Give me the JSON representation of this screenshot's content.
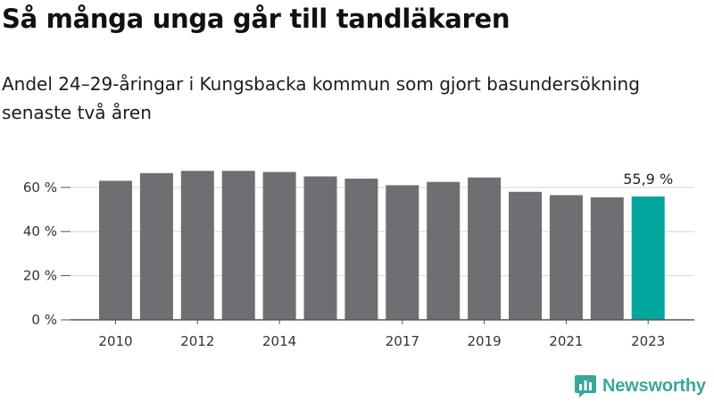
{
  "title": "Så många unga går till tandläkaren",
  "subtitle": "Andel 24–29-åringar i Kungsbacka kommun som gjort basundersökning senaste två åren",
  "brand": "Newsworthy",
  "colors": {
    "bar": "#6f6e73",
    "highlight": "#00a69b",
    "brand": "#3aa79a",
    "grid": "#d8d8d8"
  },
  "chart_data": {
    "type": "bar",
    "categories": [
      "2010",
      "2011",
      "2012",
      "2013",
      "2014",
      "2015",
      "2016",
      "2017",
      "2018",
      "2019",
      "2020",
      "2021",
      "2022",
      "2023"
    ],
    "x_tick_labels": [
      "2010",
      "",
      "2012",
      "",
      "2014",
      "",
      "",
      "2017",
      "",
      "2019",
      "",
      "2021",
      "",
      "2023"
    ],
    "values": [
      63,
      66.5,
      67.5,
      67.5,
      67,
      65,
      64,
      61,
      62.5,
      64.5,
      58,
      56.5,
      55.5,
      55.9
    ],
    "highlight_index": 13,
    "annotation": "55,9 %",
    "y_ticks": [
      0,
      20,
      40,
      60
    ],
    "y_tick_labels": [
      "0 %",
      "20 %",
      "40 %",
      "60 %"
    ],
    "ylim": [
      0,
      70
    ],
    "grid": true
  }
}
